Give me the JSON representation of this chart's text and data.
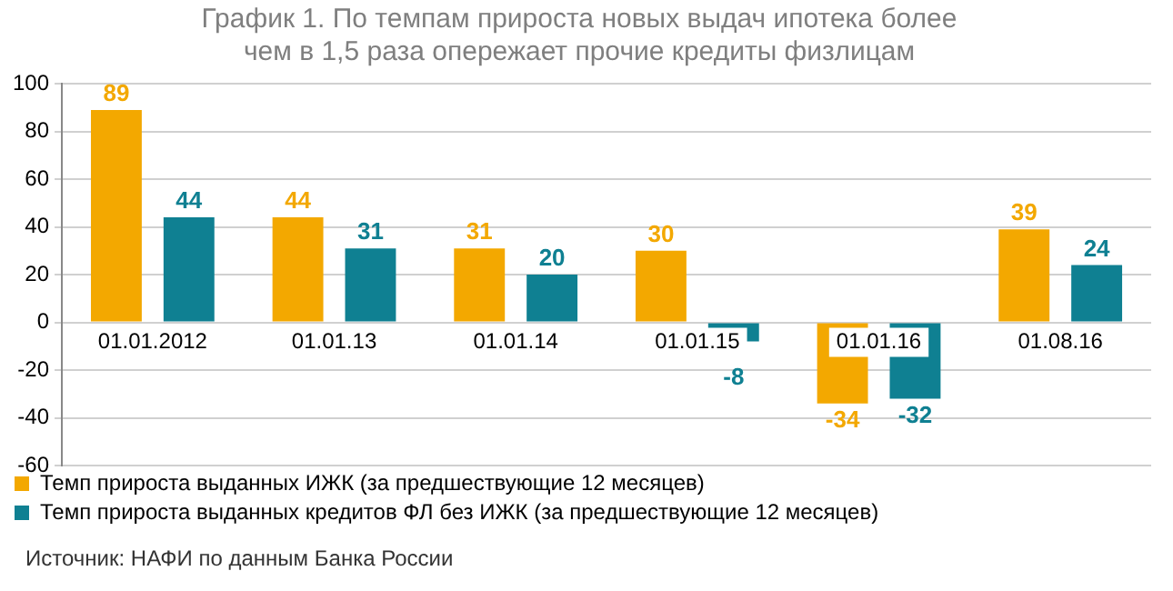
{
  "chart_data": {
    "type": "bar",
    "title": "График 1. По темпам прироста новых выдач ипотека более чем в 1,5 раза опережает прочие кредиты физлицам",
    "categories": [
      "01.01.2012",
      "01.01.13",
      "01.01.14",
      "01.01.15",
      "01.01.16",
      "01.08.16"
    ],
    "series": [
      {
        "name": "Темп прироста выданных ИЖК (за предшествующие 12 месяцев)",
        "color": "#f3a800",
        "values": [
          89,
          44,
          31,
          30,
          -34,
          39
        ]
      },
      {
        "name": "Темп прироста выданных кредитов ФЛ без ИЖК (за предшествующие 12 месяцев)",
        "color": "#0f8092",
        "values": [
          44,
          31,
          20,
          -8,
          -32,
          24
        ]
      }
    ],
    "ylim": [
      -60,
      100
    ],
    "yticks": [
      -60,
      -40,
      -20,
      0,
      20,
      40,
      60,
      80,
      100
    ],
    "grid": "y",
    "legend": "bottom",
    "data_labels": true,
    "annotations": [
      "Источник: НАФИ по данным Банка России"
    ]
  }
}
